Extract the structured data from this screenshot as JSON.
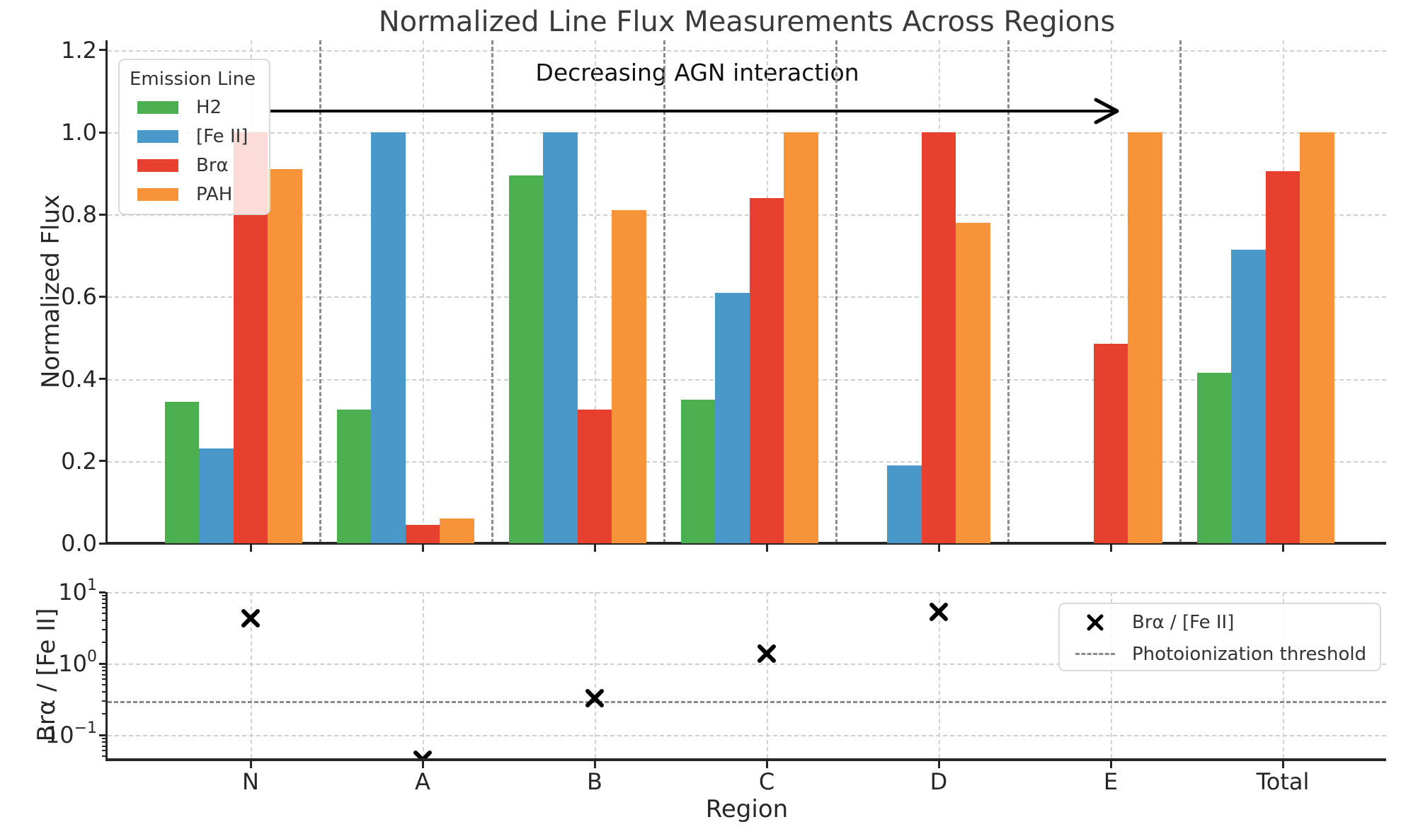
{
  "title": "Normalized Line Flux Measurements Across Regions",
  "annotation_text": "Decreasing AGN interaction",
  "xlabel": "Region",
  "top_panel": {
    "ylabel": "Normalized Flux",
    "legend_title": "Emission Line",
    "ytick_labels": [
      "0.0",
      "0.2",
      "0.4",
      "0.6",
      "0.8",
      "1.0",
      "1.2"
    ]
  },
  "bottom_panel": {
    "ylabel": "Brα / [Fe II]",
    "legend_marker_label": "Brα / [Fe II]",
    "legend_threshold_label": "Photoionization threshold",
    "ytick_exponents": [
      "1",
      "0",
      "−1"
    ]
  },
  "colors": {
    "h2": "#4CAF50",
    "feii": "#4A98CA",
    "bra": "#E8402E",
    "pah": "#F7943A",
    "grid_light": "#cfcfcf",
    "separator": "#8c8c8c",
    "threshold": "#8a8a8a",
    "axis": "#262626",
    "marker": "#000000"
  },
  "chart_data": [
    {
      "type": "bar",
      "title": "Normalized Line Flux Measurements Across Regions",
      "categories": [
        "N",
        "A",
        "B",
        "C",
        "D",
        "E",
        "Total"
      ],
      "series": [
        {
          "name": "H2",
          "color": "#4CAF50",
          "values": [
            0.345,
            0.325,
            0.895,
            0.35,
            null,
            null,
            0.415
          ]
        },
        {
          "name": "[Fe II]",
          "color": "#4A98CA",
          "values": [
            0.23,
            1.0,
            1.0,
            0.61,
            0.19,
            null,
            0.715
          ]
        },
        {
          "name": "Brα",
          "color": "#E8402E",
          "values": [
            1.0,
            0.045,
            0.325,
            0.84,
            1.0,
            0.485,
            0.905
          ]
        },
        {
          "name": "PAH",
          "color": "#F7943A",
          "values": [
            0.91,
            0.06,
            0.81,
            1.0,
            0.78,
            1.0,
            1.0
          ]
        }
      ],
      "ylabel": "Normalized Flux",
      "ylim": [
        0,
        1.224
      ],
      "yticks": [
        0,
        0.2,
        0.4,
        0.6,
        0.8,
        1.0,
        1.2
      ],
      "legend_title": "Emission Line",
      "legend_position": "upper left",
      "grid": true,
      "annotation": "Decreasing AGN interaction"
    },
    {
      "type": "scatter",
      "marker": "x",
      "categories": [
        "N",
        "A",
        "B",
        "C",
        "D",
        "E",
        "Total"
      ],
      "values": [
        4.35,
        0.045,
        0.325,
        1.38,
        5.26,
        null,
        null
      ],
      "threshold": 0.3,
      "yscale": "log",
      "ylim": [
        0.047,
        10
      ],
      "yticks": [
        10,
        1,
        0.1
      ],
      "ylabel": "Brα / [Fe II]",
      "xlabel": "Region",
      "legend": [
        "Brα / [Fe II]",
        "Photoionization threshold"
      ],
      "legend_position": "upper right",
      "grid": true
    }
  ]
}
